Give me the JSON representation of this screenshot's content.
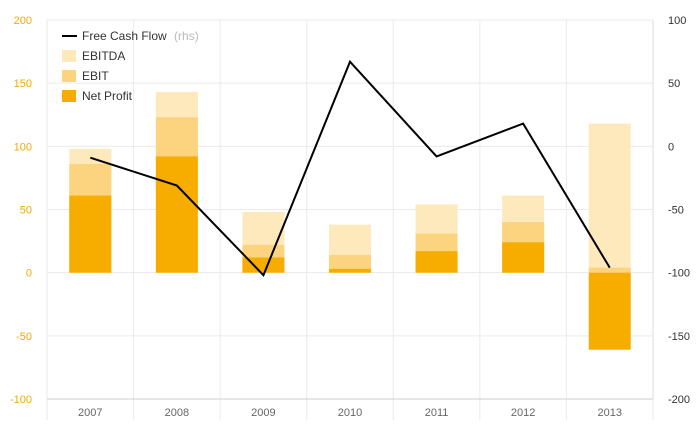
{
  "chart_data": {
    "type": "bar",
    "categories": [
      "2007",
      "2008",
      "2009",
      "2010",
      "2011",
      "2012",
      "2013"
    ],
    "series": [
      {
        "name": "EBITDA",
        "values": [
          98,
          143,
          48,
          38,
          54,
          61,
          118
        ],
        "color": "#fee9bd"
      },
      {
        "name": "EBIT",
        "values": [
          86,
          123,
          22,
          14,
          31,
          40,
          4
        ],
        "color": "#fcd37e"
      },
      {
        "name": "Net Profit",
        "values": [
          61,
          92,
          12,
          3,
          17,
          24,
          -61
        ],
        "color": "#f6ad00"
      }
    ],
    "line_series": {
      "name": "Free Cash Flow",
      "axis_note": "(rhs)",
      "values": [
        -9,
        -31,
        -102,
        67,
        -8,
        18,
        -96
      ],
      "color": "#000000"
    },
    "y_left": {
      "lim": [
        -100,
        200
      ],
      "ticks": [
        "200",
        "150",
        "100",
        "50",
        "0",
        "-50",
        "-100"
      ],
      "tick_color": "#f5a800"
    },
    "y_right": {
      "lim": [
        -200,
        100
      ],
      "ticks": [
        "100",
        "50",
        "0",
        "-50",
        "-100",
        "-150",
        "-200"
      ]
    },
    "grid": true,
    "legend_position": "top-left"
  }
}
